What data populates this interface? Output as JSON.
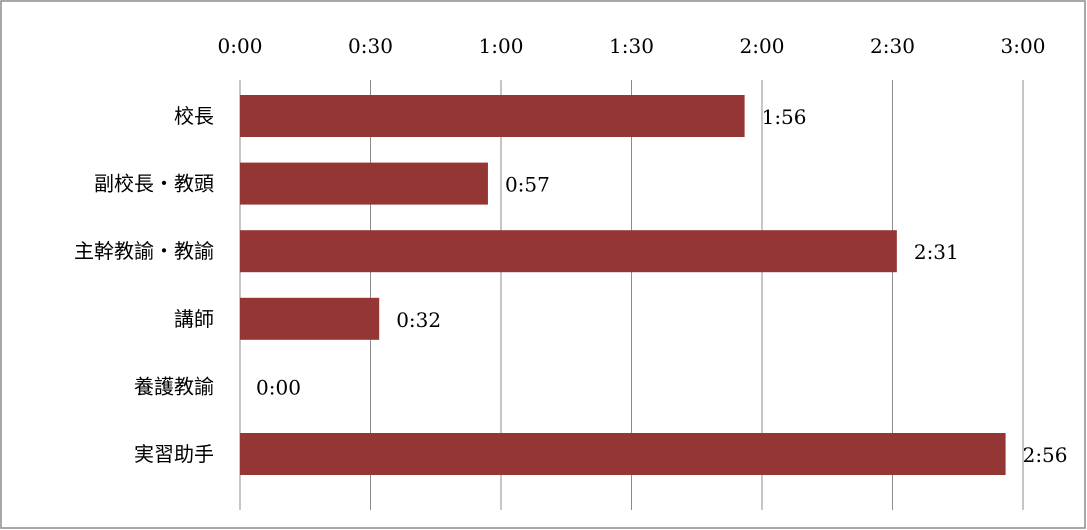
{
  "chart_data": {
    "type": "bar",
    "orientation": "horizontal",
    "title": "",
    "xlabel": "",
    "ylabel": "",
    "x_axis_position": "top",
    "xlim_minutes": [
      0,
      180
    ],
    "x_ticks": [
      {
        "minutes": 0,
        "label": "0:00"
      },
      {
        "minutes": 30,
        "label": "0:30"
      },
      {
        "minutes": 60,
        "label": "1:00"
      },
      {
        "minutes": 90,
        "label": "1:30"
      },
      {
        "minutes": 120,
        "label": "2:00"
      },
      {
        "minutes": 150,
        "label": "2:30"
      },
      {
        "minutes": 180,
        "label": "3:00"
      }
    ],
    "grid": true,
    "legend": "none",
    "bar_color": "#943634",
    "categories": [
      "校長",
      "副校長・教頭",
      "主幹教諭・教諭",
      "講師",
      "養護教諭",
      "実習助手"
    ],
    "values_minutes": [
      116,
      57,
      151,
      32,
      0,
      176
    ],
    "data_labels": [
      "1:56",
      "0:57",
      "2:31",
      "0:32",
      "0:00",
      "2:56"
    ]
  }
}
